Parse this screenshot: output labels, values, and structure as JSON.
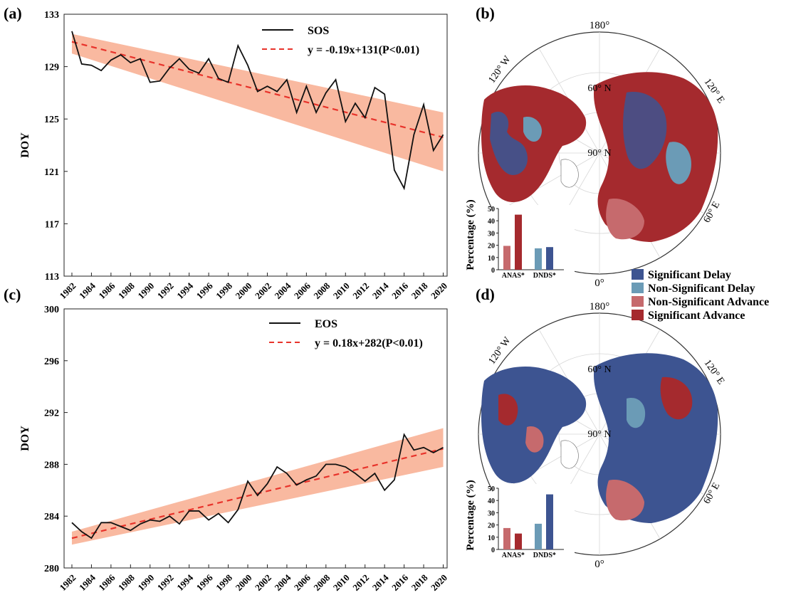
{
  "chart_data": [
    {
      "panel": "(a)",
      "type": "line",
      "ylabel": "DOY",
      "xlabel": "",
      "ylim": [
        113,
        133
      ],
      "yticks": [
        113,
        117,
        121,
        125,
        129,
        133
      ],
      "xticks": [
        "1982",
        "1984",
        "1986",
        "1988",
        "1990",
        "1992",
        "1994",
        "1996",
        "1998",
        "2000",
        "2002",
        "2004",
        "2006",
        "2008",
        "2010",
        "2012",
        "2014",
        "2016",
        "2018",
        "2020"
      ],
      "x": [
        1982,
        1983,
        1984,
        1985,
        1986,
        1987,
        1988,
        1989,
        1990,
        1991,
        1992,
        1993,
        1994,
        1995,
        1996,
        1997,
        1998,
        1999,
        2000,
        2001,
        2002,
        2003,
        2004,
        2005,
        2006,
        2007,
        2008,
        2009,
        2010,
        2011,
        2012,
        2013,
        2014,
        2015,
        2016,
        2017,
        2018,
        2019,
        2020
      ],
      "series": [
        {
          "name": "SOS",
          "values": [
            131.7,
            129.2,
            129.1,
            128.7,
            129.5,
            129.9,
            129.3,
            129.6,
            127.8,
            127.9,
            128.9,
            129.6,
            128.8,
            128.5,
            129.6,
            128.1,
            127.8,
            130.6,
            129.1,
            127.1,
            127.5,
            127.1,
            128.0,
            125.5,
            127.5,
            125.5,
            127.0,
            128.0,
            124.8,
            126.2,
            125.1,
            127.4,
            126.9,
            121.1,
            119.7,
            123.8,
            126.1,
            122.6,
            123.8
          ]
        },
        {
          "name": "y = -0.19x+131(P<0.01)",
          "style": "dashed",
          "start": 130.9,
          "end": 123.6
        }
      ],
      "ci_band": {
        "low_start": 130.0,
        "low_end": 121.0,
        "high_start": 131.5,
        "high_end": 125.5
      }
    },
    {
      "panel": "(c)",
      "type": "line",
      "ylabel": "DOY",
      "xlabel": "",
      "ylim": [
        280,
        300
      ],
      "yticks": [
        280,
        284,
        288,
        292,
        296,
        300
      ],
      "xticks": [
        "1982",
        "1984",
        "1986",
        "1988",
        "1990",
        "1992",
        "1994",
        "1996",
        "1998",
        "2000",
        "2002",
        "2004",
        "2006",
        "2008",
        "2010",
        "2012",
        "2014",
        "2016",
        "2018",
        "2020"
      ],
      "x": [
        1982,
        1983,
        1984,
        1985,
        1986,
        1987,
        1988,
        1989,
        1990,
        1991,
        1992,
        1993,
        1994,
        1995,
        1996,
        1997,
        1998,
        1999,
        2000,
        2001,
        2002,
        2003,
        2004,
        2005,
        2006,
        2007,
        2008,
        2009,
        2010,
        2011,
        2012,
        2013,
        2014,
        2015,
        2016,
        2017,
        2018,
        2019,
        2020
      ],
      "series": [
        {
          "name": "EOS",
          "values": [
            283.5,
            282.8,
            282.3,
            283.5,
            283.5,
            283.2,
            282.9,
            283.4,
            283.7,
            283.6,
            284.0,
            283.4,
            284.4,
            284.4,
            283.7,
            284.2,
            283.5,
            284.5,
            286.7,
            285.6,
            286.5,
            287.8,
            287.3,
            286.4,
            286.8,
            287.1,
            288.0,
            288.0,
            287.8,
            287.3,
            286.7,
            287.3,
            286.0,
            286.8,
            290.3,
            289.1,
            289.3,
            288.9,
            289.3
          ]
        },
        {
          "name": "y = 0.18x+282(P<0.01)",
          "style": "dashed",
          "start": 282.3,
          "end": 289.2
        }
      ],
      "ci_band": {
        "low_start": 281.8,
        "low_end": 287.8,
        "high_start": 282.8,
        "high_end": 290.8
      }
    },
    {
      "panel": "(b)",
      "type": "bar",
      "ylabel": "Percentage (%)",
      "ylim": [
        0,
        50
      ],
      "yticks": [
        0,
        10,
        20,
        30,
        40,
        50
      ],
      "categories": [
        "AN",
        "AS*",
        "DN",
        "DS*"
      ],
      "values": [
        19.5,
        45,
        17.5,
        18.5
      ],
      "colors": [
        "#c66a6d",
        "#a52a2e",
        "#6b9bb6",
        "#3d5491"
      ]
    },
    {
      "panel": "(d)",
      "type": "bar",
      "ylabel": "Percentage (%)",
      "ylim": [
        0,
        50
      ],
      "yticks": [
        0,
        10,
        20,
        30,
        40,
        50
      ],
      "categories": [
        "AN",
        "AS*",
        "DN",
        "DS*"
      ],
      "values": [
        17.5,
        13,
        21,
        45
      ],
      "colors": [
        "#c66a6d",
        "#a52a2e",
        "#6b9bb6",
        "#3d5491"
      ]
    }
  ],
  "maps": {
    "b": {
      "label": "(b)",
      "top_label": "180°",
      "bottom_label": "0°",
      "lat60": "60° N",
      "pole": "90° N",
      "lon_left": "120° W",
      "lon_right": "120° E",
      "lon_bottom_right": "60° E"
    },
    "d": {
      "label": "(d)",
      "top_label": "180°",
      "bottom_label": "0°",
      "lat60": "60° N",
      "pole": "90° N",
      "lon_left": "120° W",
      "lon_right": "120° E",
      "lon_bottom_right": "60° E"
    }
  },
  "legend": [
    {
      "label": "Significant Delay",
      "color": "#3d5491"
    },
    {
      "label": "Non-Significant Delay",
      "color": "#6b9bb6"
    },
    {
      "label": "Non-Significant Advance",
      "color": "#c66a6d"
    },
    {
      "label": "Significant Advance",
      "color": "#a52a2e"
    }
  ],
  "colors": {
    "line": "#111111",
    "trend": "#e8332b",
    "band": "#f9b9a0",
    "map_red": "#a52a2e",
    "map_blue": "#3d5491",
    "map_lightblue": "#6b9bb6",
    "map_pink": "#c66a6d"
  }
}
